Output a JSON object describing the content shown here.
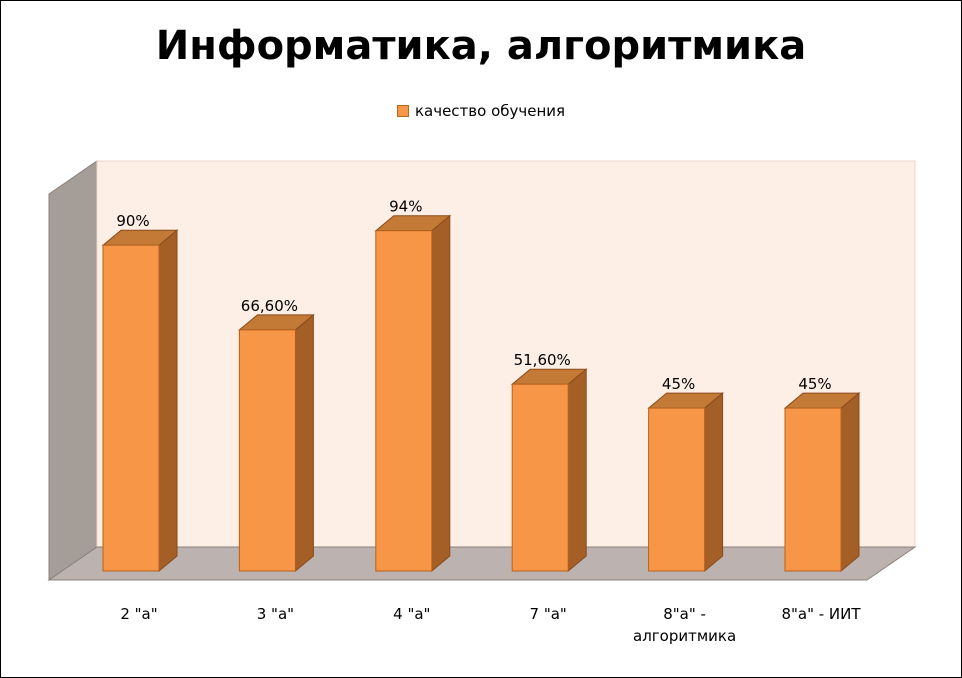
{
  "chart_data": {
    "type": "bar",
    "title": "Информатика, алгоритмика",
    "legend_position": "top",
    "three_d": true,
    "ylim": [
      0,
      100
    ],
    "categories": [
      [
        "2 \"а\""
      ],
      [
        "3 \"а\""
      ],
      [
        "4 \"а\""
      ],
      [
        "7 \"а\""
      ],
      [
        "8\"а\" -",
        "алгоритмика"
      ],
      [
        "8\"а\" - ИИТ"
      ]
    ],
    "series": [
      {
        "name": "качество обучения",
        "values": [
          90,
          66.6,
          94,
          51.6,
          45,
          45
        ],
        "data_labels": [
          "90%",
          "66,60%",
          "94%",
          "51,60%",
          "45%",
          "45%"
        ],
        "color": "#f79646"
      }
    ],
    "colors": {
      "bar_front": "#f79646",
      "bar_side": "#a45f27",
      "bar_top": "#c27a36",
      "back_wall": "#fdeee6",
      "side_wall": "#a59d98",
      "floor": "#bcb3b0"
    }
  }
}
